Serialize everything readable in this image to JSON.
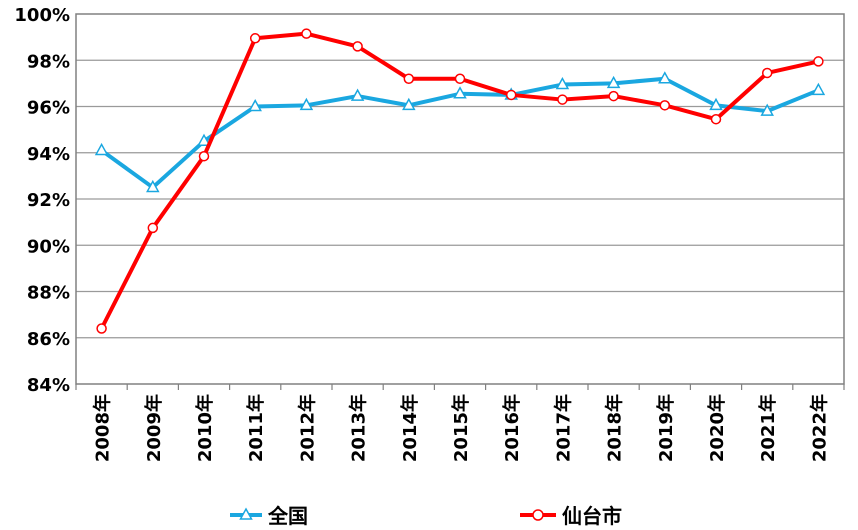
{
  "chart_data": {
    "type": "line",
    "title": "",
    "xlabel": "",
    "ylabel": "",
    "categories": [
      "2008年",
      "2009年",
      "2010年",
      "2011年",
      "2012年",
      "2013年",
      "2014年",
      "2015年",
      "2016年",
      "2017年",
      "2018年",
      "2019年",
      "2020年",
      "2021年",
      "2022年"
    ],
    "ylim": [
      84,
      100
    ],
    "yticks": [
      "84%",
      "86%",
      "88%",
      "90%",
      "92%",
      "94%",
      "96%",
      "98%",
      "100%"
    ],
    "y_tick_values": [
      84,
      86,
      88,
      90,
      92,
      94,
      96,
      98,
      100
    ],
    "grid": true,
    "legend_position": "bottom",
    "series": [
      {
        "name": "全国",
        "color": "#1aa7e0",
        "marker": "triangle",
        "values": [
          94.1,
          92.5,
          94.5,
          96.0,
          96.05,
          96.45,
          96.05,
          96.55,
          96.5,
          96.95,
          97.0,
          97.2,
          96.05,
          95.8,
          96.7
        ]
      },
      {
        "name": "仙台市",
        "color": "#ff0000",
        "marker": "circle",
        "values": [
          86.4,
          90.75,
          93.85,
          98.95,
          99.15,
          98.6,
          97.2,
          97.2,
          96.5,
          96.3,
          96.45,
          96.05,
          95.45,
          97.45,
          97.95
        ]
      }
    ]
  }
}
